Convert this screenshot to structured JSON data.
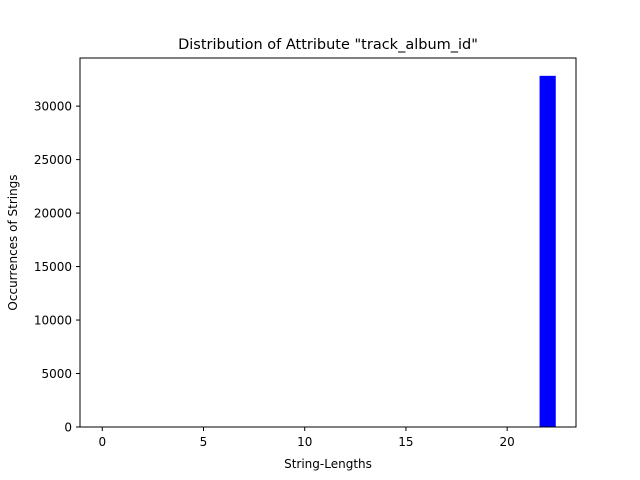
{
  "chart_data": {
    "type": "bar",
    "title": "Distribution of Attribute \"track_album_id\"",
    "xlabel": "String-Lengths",
    "ylabel": "Occurrences of Strings",
    "xlim": [
      -1.1,
      23.4
    ],
    "ylim": [
      0,
      34500
    ],
    "xticks": [
      0,
      5,
      10,
      15,
      20
    ],
    "yticks": [
      0,
      5000,
      10000,
      15000,
      20000,
      25000,
      30000
    ],
    "grid": false,
    "legend": "none",
    "bar_color": "#0000ff",
    "bars": [
      {
        "x_start": 21.6,
        "x_end": 22.4,
        "value": 32833
      }
    ]
  }
}
